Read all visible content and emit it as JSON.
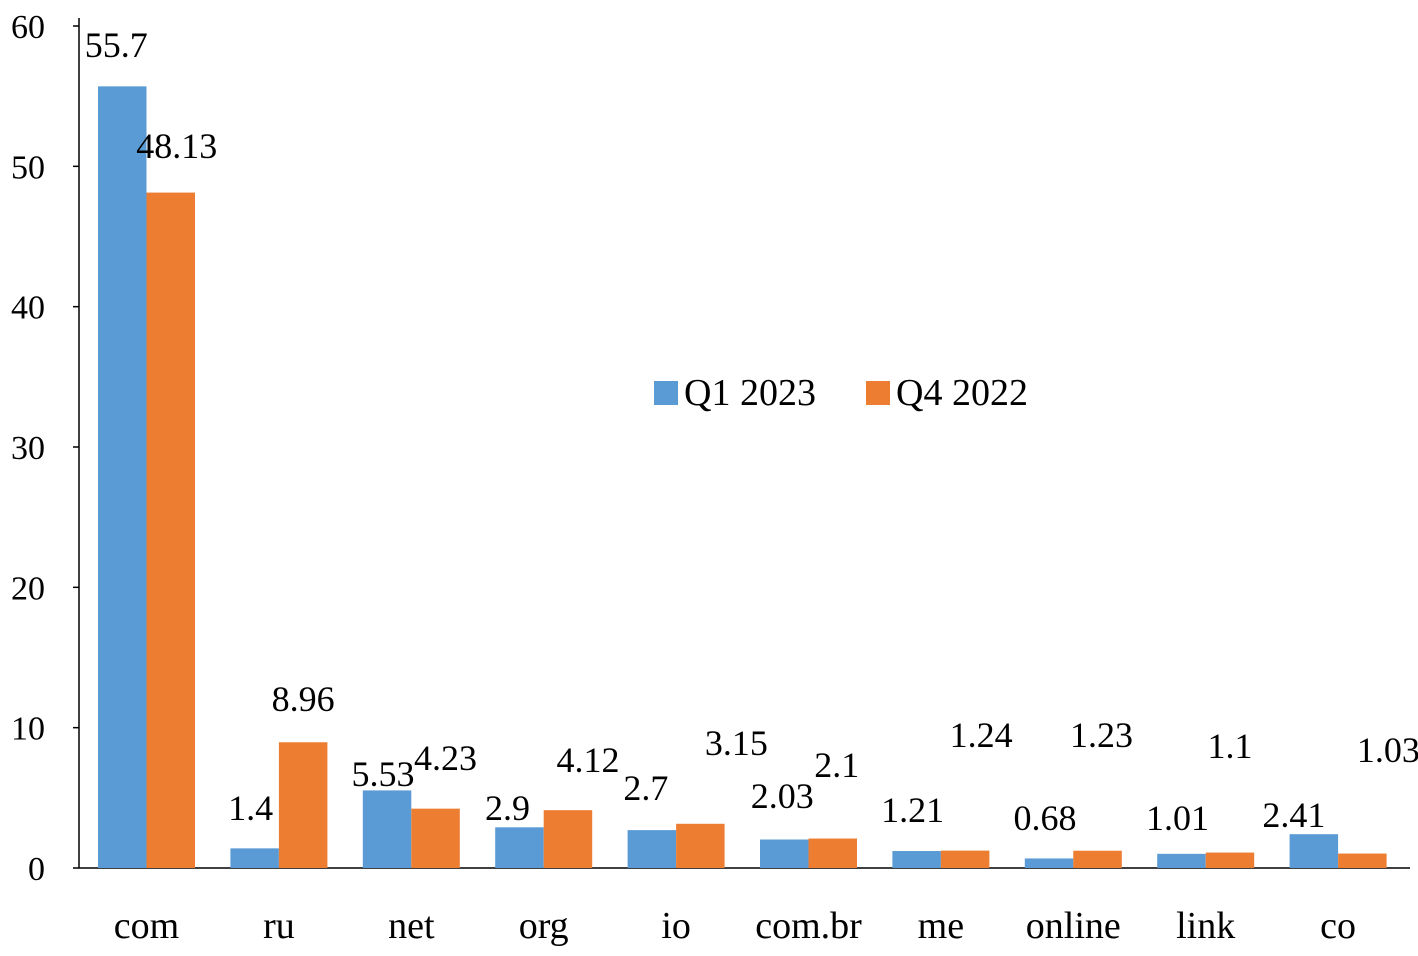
{
  "chart_data": {
    "type": "bar",
    "categories": [
      "com",
      "ru",
      "net",
      "org",
      "io",
      "com.br",
      "me",
      "online",
      "link",
      "co"
    ],
    "series": [
      {
        "name": "Q1 2023",
        "color": "#5b9bd5",
        "values": [
          55.7,
          1.4,
          5.53,
          2.9,
          2.7,
          2.03,
          1.21,
          0.68,
          1.01,
          2.41
        ]
      },
      {
        "name": "Q4 2022",
        "color": "#ed7d31",
        "values": [
          48.13,
          8.96,
          4.23,
          4.12,
          3.15,
          2.1,
          1.24,
          1.23,
          1.1,
          1.03
        ]
      }
    ],
    "data_labels": [
      [
        "55.7",
        "1.4",
        "5.53",
        "2.9",
        "2.7",
        "2.03",
        "1.21",
        "0.68",
        "1.01",
        "2.41"
      ],
      [
        "48.13",
        "8.96",
        "4.23",
        "4.12",
        "3.15",
        "2.1",
        "1.24",
        "1.23",
        "1.1",
        "1.03"
      ]
    ],
    "title": "",
    "xlabel": "",
    "ylabel": "",
    "ylim": [
      0,
      60
    ],
    "yticks": [
      0,
      10,
      20,
      30,
      40,
      50,
      60
    ],
    "grid": false,
    "legend": "center-right"
  }
}
